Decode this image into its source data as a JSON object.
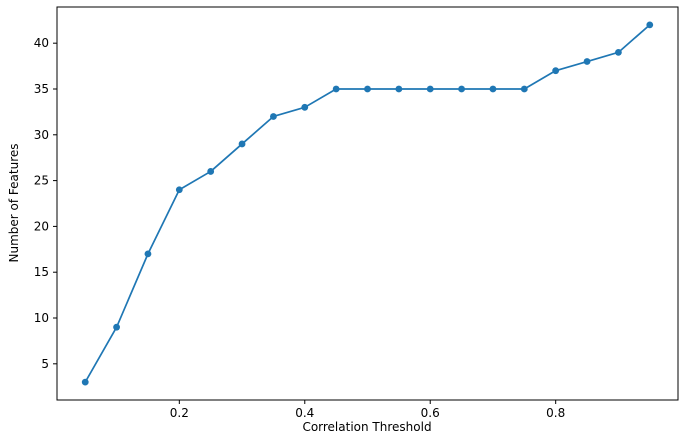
{
  "chart_data": {
    "type": "line",
    "title": "",
    "xlabel": "Correlation Threshold",
    "ylabel": "Number of Features",
    "x": [
      0.05,
      0.1,
      0.15,
      0.2,
      0.25,
      0.3,
      0.35,
      0.4,
      0.45,
      0.5,
      0.55,
      0.6,
      0.65,
      0.7,
      0.75,
      0.8,
      0.85,
      0.9,
      0.95
    ],
    "values": [
      3,
      9,
      17,
      24,
      26,
      29,
      32,
      33,
      35,
      35,
      35,
      35,
      35,
      35,
      35,
      37,
      38,
      39,
      42
    ],
    "xticks": [
      0.2,
      0.4,
      0.6,
      0.8
    ],
    "yticks": [
      5,
      10,
      15,
      20,
      25,
      30,
      35,
      40
    ],
    "xlim": [
      0.005,
      0.995
    ],
    "ylim": [
      1.05,
      43.95
    ],
    "grid": false,
    "line_color": "#1f77b4",
    "marker_color": "#1f77b4",
    "spine_color": "#000000",
    "tick_label_color": "#000000",
    "background_color": "#ffffff"
  }
}
